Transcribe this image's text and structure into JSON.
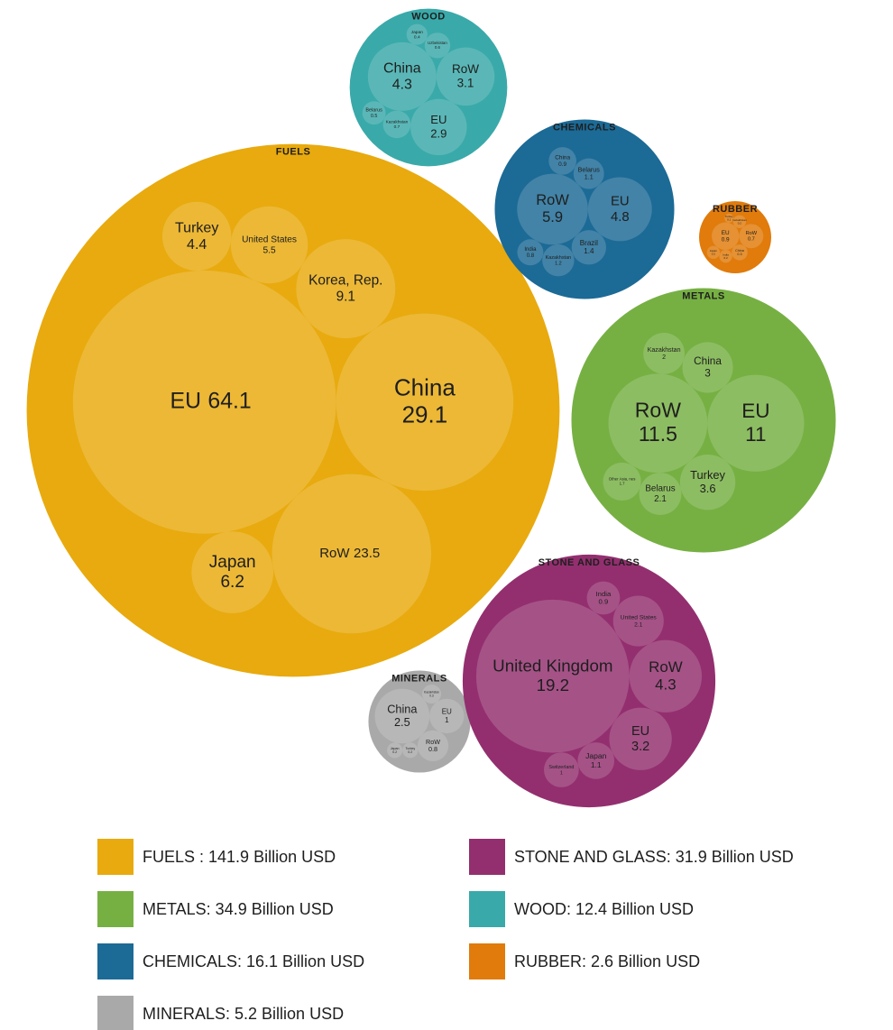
{
  "chart_data": {
    "type": "packed_bubble",
    "groups": [
      {
        "name": "FUELS",
        "total": 141.9,
        "legend_label": "FUELS : 141.9 Billion USD",
        "color": "#e8aa0e",
        "children": [
          {
            "name": "EU",
            "value": 64.1
          },
          {
            "name": "China",
            "value": 29.1
          },
          {
            "name": "RoW",
            "value": 23.5
          },
          {
            "name": "Korea, Rep.",
            "value": 9.1
          },
          {
            "name": "Japan",
            "value": 6.2
          },
          {
            "name": "United States",
            "value": 5.5
          },
          {
            "name": "Turkey",
            "value": 4.4
          }
        ]
      },
      {
        "name": "METALS",
        "total": 34.9,
        "legend_label": "METALS: 34.9 Billion USD",
        "color": "#76b043",
        "children": [
          {
            "name": "RoW",
            "value": 11.5
          },
          {
            "name": "EU",
            "value": 11
          },
          {
            "name": "Turkey",
            "value": 3.6
          },
          {
            "name": "China",
            "value": 3
          },
          {
            "name": "Belarus",
            "value": 2.1
          },
          {
            "name": "Kazakhstan",
            "value": 2
          },
          {
            "name": "Other Asia, nes",
            "value": 1.7
          }
        ]
      },
      {
        "name": "CHEMICALS",
        "total": 16.1,
        "legend_label": "CHEMICALS: 16.1 Billion USD",
        "color": "#1c6a96",
        "children": [
          {
            "name": "RoW",
            "value": 5.9
          },
          {
            "name": "EU",
            "value": 4.8
          },
          {
            "name": "Brazil",
            "value": 1.4
          },
          {
            "name": "Kazakhstan",
            "value": 1.2
          },
          {
            "name": "Belarus",
            "value": 1.1
          },
          {
            "name": "China",
            "value": 0.9
          },
          {
            "name": "India",
            "value": 0.8
          }
        ]
      },
      {
        "name": "MINERALS",
        "total": 5.2,
        "legend_label": "MINERALS: 5.2 Billion USD",
        "color": "#a9a9a9",
        "children": [
          {
            "name": "China",
            "value": 2.5
          },
          {
            "name": "EU",
            "value": 1
          },
          {
            "name": "RoW",
            "value": 0.8
          },
          {
            "name": "Kazakhstan",
            "value": 0.3
          },
          {
            "name": "Turkey",
            "value": 0.2
          },
          {
            "name": "Japan",
            "value": 0.2
          }
        ]
      },
      {
        "name": "STONE AND GLASS",
        "total": 31.9,
        "legend_label": "STONE AND GLASS: 31.9 Billion USD",
        "color": "#932f6f",
        "children": [
          {
            "name": "United Kingdom",
            "value": 19.2
          },
          {
            "name": "RoW",
            "value": 4.3
          },
          {
            "name": "EU",
            "value": 3.2
          },
          {
            "name": "United States",
            "value": 2.1
          },
          {
            "name": "Japan",
            "value": 1.1
          },
          {
            "name": "Switzerland",
            "value": 1
          },
          {
            "name": "India",
            "value": 0.9
          }
        ]
      },
      {
        "name": "WOOD",
        "total": 12.4,
        "legend_label": "WOOD: 12.4 Billion USD",
        "color": "#3aa9a9",
        "children": [
          {
            "name": "China",
            "value": 4.3
          },
          {
            "name": "RoW",
            "value": 3.1
          },
          {
            "name": "EU",
            "value": 2.9
          },
          {
            "name": "Kazakhstan",
            "value": 0.7
          },
          {
            "name": "Uzbekistan",
            "value": 0.6
          },
          {
            "name": "Belarus",
            "value": 0.5
          },
          {
            "name": "Japan",
            "value": 0.4
          }
        ]
      },
      {
        "name": "RUBBER",
        "total": 2.6,
        "legend_label": "RUBBER: 2.6 Billion USD",
        "color": "#e07b0c",
        "children": [
          {
            "name": "EU",
            "value": 0.9
          },
          {
            "name": "RoW",
            "value": 0.7
          },
          {
            "name": "China",
            "value": 0.3
          },
          {
            "name": "Kazakhstan",
            "value": 0.2
          },
          {
            "name": "India",
            "value": 0.2
          },
          {
            "name": "Japan",
            "value": 0.2
          },
          {
            "name": "Turkey",
            "value": 0.1
          }
        ]
      }
    ]
  }
}
